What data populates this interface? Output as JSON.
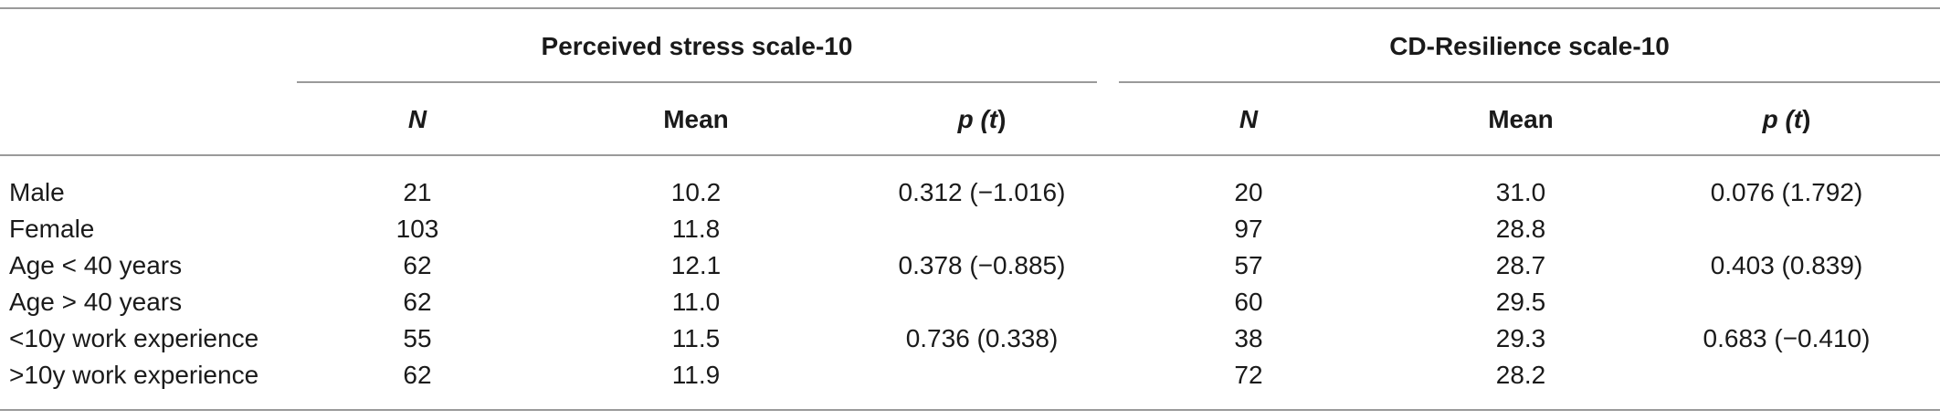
{
  "table": {
    "group_headers": {
      "pss": "Perceived stress scale-10",
      "cdrisc": "CD-Resilience scale-10"
    },
    "column_headers": {
      "pss_n": "N",
      "pss_mean": "Mean",
      "pss_p_prefix": "p (",
      "pss_p_t": "t",
      "pss_p_suffix": ")",
      "cd_n": "N",
      "cd_mean": "Mean",
      "cd_p_prefix": "p (",
      "cd_p_t": "t",
      "cd_p_suffix": ")"
    },
    "rows": [
      {
        "label": "Male",
        "pss_n": "21",
        "pss_mean": "10.2",
        "pss_p": "0.312 (−1.016)",
        "cd_n": "20",
        "cd_mean": "31.0",
        "cd_p": "0.076 (1.792)"
      },
      {
        "label": "Female",
        "pss_n": "103",
        "pss_mean": "11.8",
        "pss_p": "",
        "cd_n": "97",
        "cd_mean": "28.8",
        "cd_p": ""
      },
      {
        "label": "Age < 40 years",
        "pss_n": "62",
        "pss_mean": "12.1",
        "pss_p": "0.378 (−0.885)",
        "cd_n": "57",
        "cd_mean": "28.7",
        "cd_p": "0.403 (0.839)"
      },
      {
        "label": "Age > 40 years",
        "pss_n": "62",
        "pss_mean": "11.0",
        "pss_p": "",
        "cd_n": "60",
        "cd_mean": "29.5",
        "cd_p": ""
      },
      {
        "label": "<10y work experience",
        "pss_n": "55",
        "pss_mean": "11.5",
        "pss_p": "0.736 (0.338)",
        "cd_n": "38",
        "cd_mean": "29.3",
        "cd_p": "0.683 (−0.410)"
      },
      {
        "label": ">10y work experience",
        "pss_n": "62",
        "pss_mean": "11.9",
        "pss_p": "",
        "cd_n": "72",
        "cd_mean": "28.2",
        "cd_p": ""
      }
    ]
  }
}
